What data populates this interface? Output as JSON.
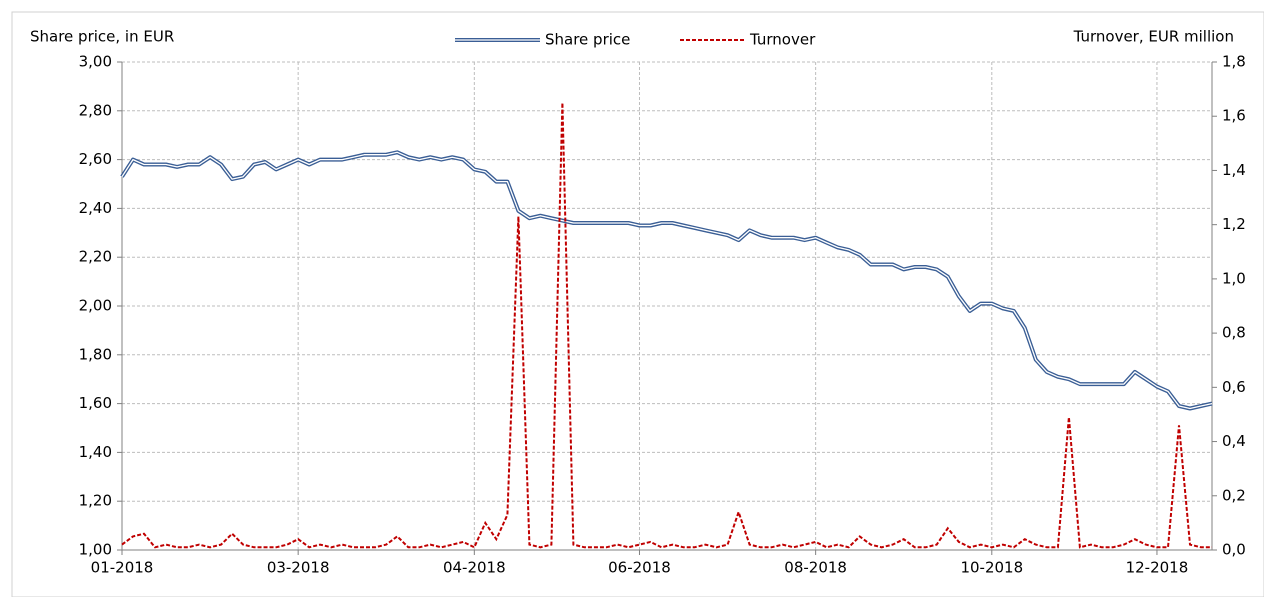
{
  "chart_data": {
    "type": "line",
    "y_label": "Share price, in EUR",
    "y2_label": "Turnover, EUR million",
    "categories": [
      "01-2018",
      null,
      null,
      null,
      null,
      null,
      null,
      null,
      null,
      null,
      null,
      null,
      null,
      null,
      null,
      null,
      "03-2018",
      null,
      null,
      null,
      null,
      null,
      null,
      null,
      null,
      null,
      null,
      null,
      null,
      null,
      null,
      null,
      "04-2018",
      null,
      null,
      null,
      null,
      null,
      null,
      null,
      null,
      null,
      null,
      null,
      null,
      null,
      null,
      "06-2018",
      null,
      null,
      null,
      null,
      null,
      null,
      null,
      null,
      null,
      null,
      null,
      null,
      null,
      null,
      null,
      "08-2018",
      null,
      null,
      null,
      null,
      null,
      null,
      null,
      null,
      null,
      null,
      null,
      null,
      null,
      null,
      null,
      "10-2018",
      null,
      null,
      null,
      null,
      null,
      null,
      null,
      null,
      null,
      null,
      null,
      null,
      null,
      null,
      "12-2018",
      null,
      null,
      null,
      null,
      null
    ],
    "series": [
      {
        "name": "Share price",
        "color": "#3a5e95",
        "style": "double",
        "values": [
          2.53,
          2.6,
          2.58,
          2.58,
          2.58,
          2.57,
          2.58,
          2.58,
          2.61,
          2.58,
          2.52,
          2.53,
          2.58,
          2.59,
          2.56,
          2.58,
          2.6,
          2.58,
          2.6,
          2.6,
          2.6,
          2.61,
          2.62,
          2.62,
          2.62,
          2.63,
          2.61,
          2.6,
          2.61,
          2.6,
          2.61,
          2.6,
          2.56,
          2.55,
          2.51,
          2.51,
          2.39,
          2.36,
          2.37,
          2.36,
          2.35,
          2.34,
          2.34,
          2.34,
          2.34,
          2.34,
          2.34,
          2.33,
          2.33,
          2.34,
          2.34,
          2.33,
          2.32,
          2.31,
          2.3,
          2.29,
          2.27,
          2.31,
          2.29,
          2.28,
          2.28,
          2.28,
          2.27,
          2.28,
          2.26,
          2.24,
          2.23,
          2.21,
          2.17,
          2.17,
          2.17,
          2.15,
          2.16,
          2.16,
          2.15,
          2.12,
          2.04,
          1.98,
          2.01,
          2.01,
          1.99,
          1.98,
          1.91,
          1.78,
          1.73,
          1.71,
          1.7,
          1.68,
          1.68,
          1.68,
          1.68,
          1.68,
          1.73,
          1.7,
          1.67,
          1.65,
          1.59,
          1.58,
          1.59,
          1.6
        ]
      },
      {
        "name": "Turnover",
        "color": "#c00000",
        "style": "dashed",
        "axis": "y2",
        "values": [
          0.02,
          0.05,
          0.06,
          0.01,
          0.02,
          0.01,
          0.01,
          0.02,
          0.01,
          0.02,
          0.06,
          0.02,
          0.01,
          0.01,
          0.01,
          0.02,
          0.04,
          0.01,
          0.02,
          0.01,
          0.02,
          0.01,
          0.01,
          0.01,
          0.02,
          0.05,
          0.01,
          0.01,
          0.02,
          0.01,
          0.02,
          0.03,
          0.01,
          0.1,
          0.04,
          0.13,
          1.23,
          0.02,
          0.01,
          0.02,
          1.65,
          0.02,
          0.01,
          0.01,
          0.01,
          0.02,
          0.01,
          0.02,
          0.03,
          0.01,
          0.02,
          0.01,
          0.01,
          0.02,
          0.01,
          0.02,
          0.14,
          0.02,
          0.01,
          0.01,
          0.02,
          0.01,
          0.02,
          0.03,
          0.01,
          0.02,
          0.01,
          0.05,
          0.02,
          0.01,
          0.02,
          0.04,
          0.01,
          0.01,
          0.02,
          0.08,
          0.03,
          0.01,
          0.02,
          0.01,
          0.02,
          0.01,
          0.04,
          0.02,
          0.01,
          0.01,
          0.49,
          0.01,
          0.02,
          0.01,
          0.01,
          0.02,
          0.04,
          0.02,
          0.01,
          0.01,
          0.46,
          0.02,
          0.01,
          0.01
        ]
      }
    ],
    "ylim": [
      1,
      3
    ],
    "yticks": [
      {
        "value": 1,
        "label": "1,00"
      },
      {
        "value": 1.2,
        "label": "1,20"
      },
      {
        "value": 1.4,
        "label": "1,40"
      },
      {
        "value": 1.6,
        "label": "1,60"
      },
      {
        "value": 1.8,
        "label": "1,80"
      },
      {
        "value": 2,
        "label": "2,00"
      },
      {
        "value": 2.2,
        "label": "2,20"
      },
      {
        "value": 2.4,
        "label": "2,40"
      },
      {
        "value": 2.6,
        "label": "2,60"
      },
      {
        "value": 2.8,
        "label": "2,80"
      },
      {
        "value": 3,
        "label": "3,00"
      }
    ],
    "y2lim": [
      0,
      1.8
    ],
    "y2ticks": [
      {
        "value": 0,
        "label": "0,0"
      },
      {
        "value": 0.2,
        "label": "0,2"
      },
      {
        "value": 0.4,
        "label": "0,4"
      },
      {
        "value": 0.6,
        "label": "0,6"
      },
      {
        "value": 0.8,
        "label": "0,8"
      },
      {
        "value": 1,
        "label": "1,0"
      },
      {
        "value": 1.2,
        "label": "1,2"
      },
      {
        "value": 1.4,
        "label": "1,4"
      },
      {
        "value": 1.6,
        "label": "1,6"
      },
      {
        "value": 1.8,
        "label": "1,8"
      }
    ],
    "grid": true,
    "legend": "top"
  }
}
